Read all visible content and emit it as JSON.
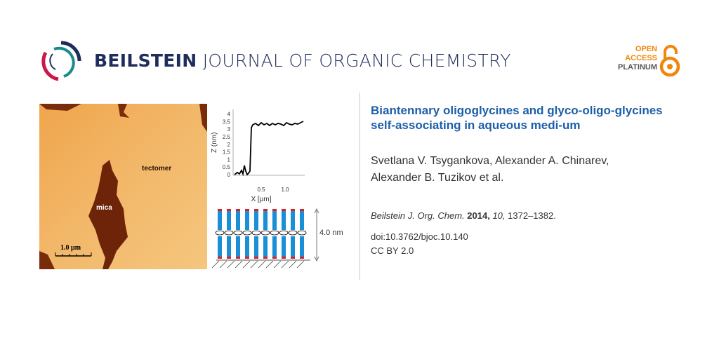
{
  "journal": {
    "name_bold": "BEILSTEIN",
    "name_rest": "JOURNAL OF ORGANIC CHEMISTRY"
  },
  "open_access": {
    "line1": "OPEN",
    "line2": "ACCESS",
    "line3": "PLATINUM",
    "color": "#f0860a"
  },
  "article": {
    "title": "Biantennary oligoglycines and glyco-oligo-glycines self-associating in aqueous medi-um",
    "authors_line1": "Svetlana V. Tsygankova, Alexander A. Chinarev,",
    "authors_line2": "Alexander B. Tuzikov et al.",
    "journal_abbr": "Beilstein J. Org. Chem.",
    "year": "2014,",
    "volume": "10,",
    "pages": "1372–1382.",
    "doi": "doi:10.3762/bjoc.10.140",
    "license": "CC BY 2.0"
  },
  "figure": {
    "afm_labels": {
      "tectomer": "tectomer",
      "mica": "mica",
      "scale": "1.0 µm"
    },
    "profile": {
      "ylabel": "Z (nm)",
      "xlabel": "X [µm]",
      "yticks": [
        "0",
        "0.5",
        "1",
        "1.5",
        "2",
        "2.5",
        "3",
        "3.5",
        "4"
      ],
      "xticks": [
        "0.5",
        "1.0"
      ]
    },
    "height_label": "4.0 nm"
  },
  "colors": {
    "title": "#1c5fa8",
    "journal": "#1f2d5c",
    "column": "#1a8fd6",
    "cap": "#e02020"
  }
}
